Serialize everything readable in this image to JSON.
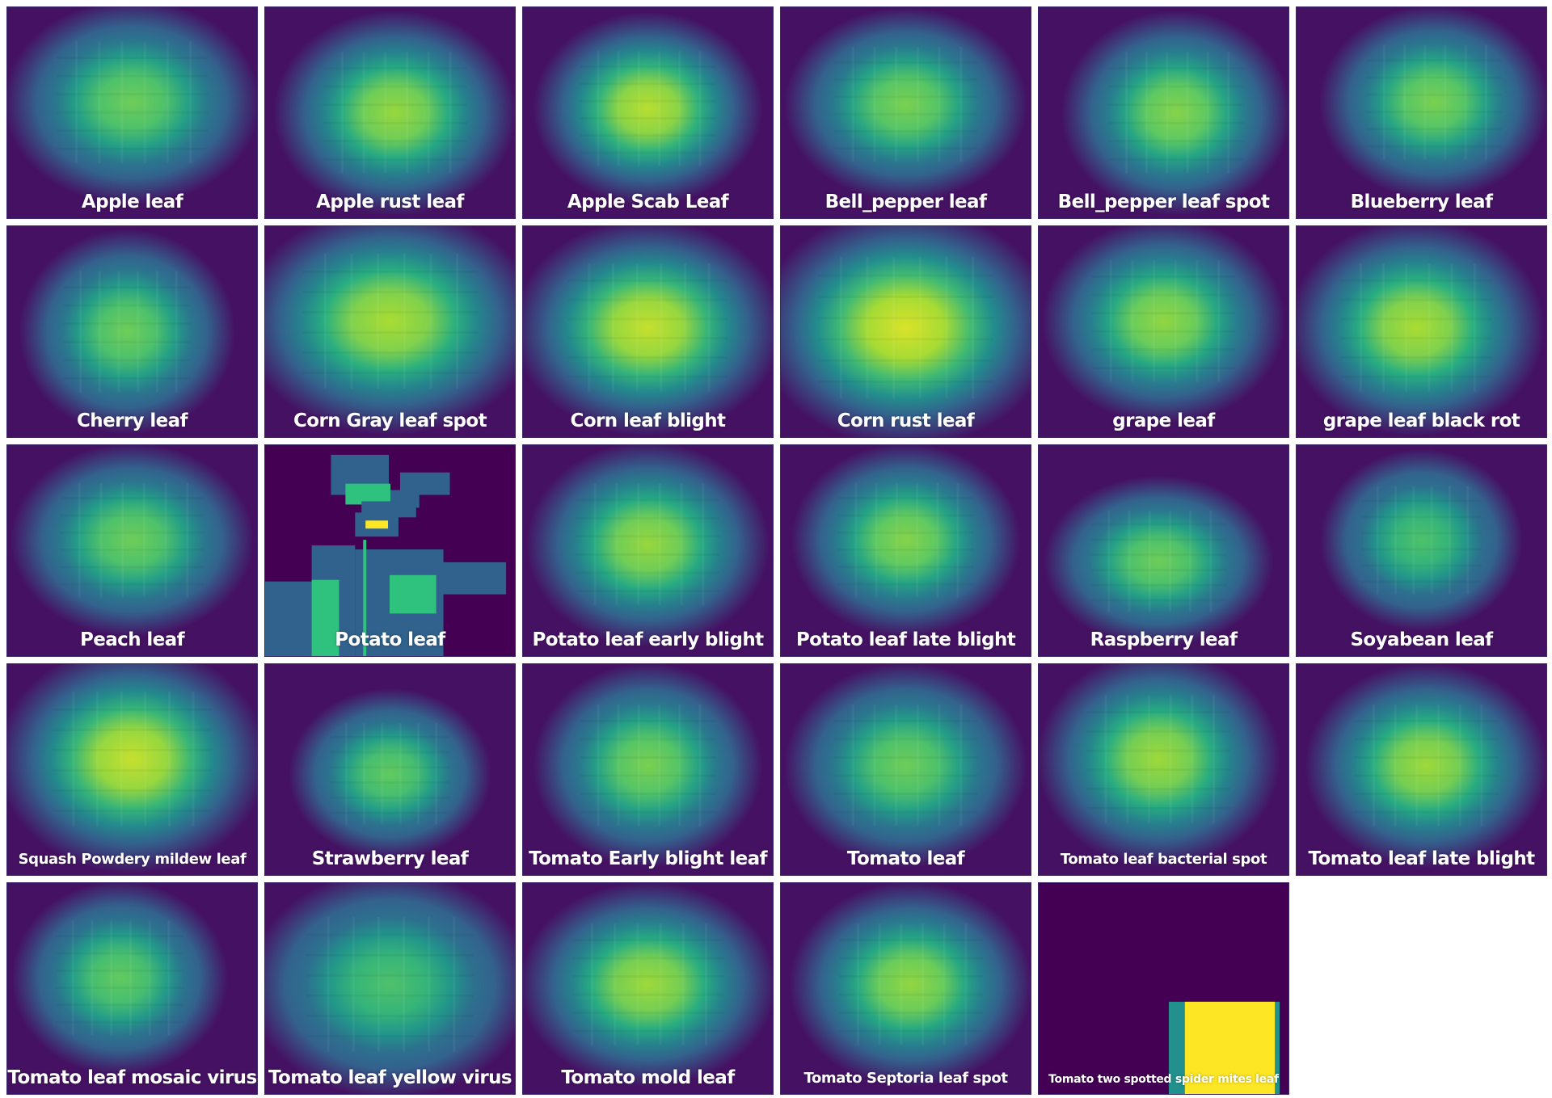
{
  "chart_data": {
    "type": "heatmap",
    "colormap": "viridis",
    "panels": [
      {
        "label": "Apple leaf",
        "style": "blur",
        "cx": 0.5,
        "cy": 0.45,
        "rx": 0.38,
        "ry": 0.36,
        "peak": 0.78
      },
      {
        "label": "Apple rust leaf",
        "style": "blur",
        "cx": 0.52,
        "cy": 0.5,
        "rx": 0.36,
        "ry": 0.36,
        "peak": 0.85
      },
      {
        "label": "Apple Scab Leaf",
        "style": "blur",
        "cx": 0.5,
        "cy": 0.48,
        "rx": 0.34,
        "ry": 0.34,
        "peak": 0.9
      },
      {
        "label": "Bell_pepper leaf",
        "style": "blur",
        "cx": 0.5,
        "cy": 0.46,
        "rx": 0.36,
        "ry": 0.34,
        "peak": 0.8
      },
      {
        "label": "Bell_pepper leaf spot",
        "style": "blur",
        "cx": 0.55,
        "cy": 0.5,
        "rx": 0.34,
        "ry": 0.36,
        "peak": 0.82
      },
      {
        "label": "Blueberry leaf",
        "style": "blur",
        "cx": 0.55,
        "cy": 0.45,
        "rx": 0.34,
        "ry": 0.34,
        "peak": 0.8
      },
      {
        "label": "Cherry leaf",
        "style": "blur",
        "cx": 0.48,
        "cy": 0.5,
        "rx": 0.32,
        "ry": 0.36,
        "peak": 0.78
      },
      {
        "label": "Corn Gray leaf spot",
        "style": "blur",
        "cx": 0.5,
        "cy": 0.45,
        "rx": 0.44,
        "ry": 0.4,
        "peak": 0.88
      },
      {
        "label": "Corn leaf blight",
        "style": "blur",
        "cx": 0.5,
        "cy": 0.48,
        "rx": 0.4,
        "ry": 0.38,
        "peak": 0.92
      },
      {
        "label": "Corn rust leaf",
        "style": "blur",
        "cx": 0.5,
        "cy": 0.48,
        "rx": 0.44,
        "ry": 0.42,
        "peak": 0.95
      },
      {
        "label": "grape leaf",
        "style": "blur",
        "cx": 0.5,
        "cy": 0.45,
        "rx": 0.36,
        "ry": 0.36,
        "peak": 0.84
      },
      {
        "label": "grape leaf black rot",
        "style": "blur",
        "cx": 0.48,
        "cy": 0.48,
        "rx": 0.38,
        "ry": 0.38,
        "peak": 0.88
      },
      {
        "label": "Peach leaf",
        "style": "blur",
        "cx": 0.5,
        "cy": 0.45,
        "rx": 0.36,
        "ry": 0.34,
        "peak": 0.78
      },
      {
        "label": "Potato leaf",
        "style": "blocks"
      },
      {
        "label": "Potato leaf early blight",
        "style": "blur",
        "cx": 0.5,
        "cy": 0.47,
        "rx": 0.36,
        "ry": 0.36,
        "peak": 0.85
      },
      {
        "label": "Potato leaf late blight",
        "style": "blur",
        "cx": 0.5,
        "cy": 0.45,
        "rx": 0.34,
        "ry": 0.34,
        "peak": 0.82
      },
      {
        "label": "Raspberry leaf",
        "style": "blur",
        "cx": 0.48,
        "cy": 0.55,
        "rx": 0.34,
        "ry": 0.3,
        "peak": 0.78
      },
      {
        "label": "Soyabean leaf",
        "style": "blur",
        "cx": 0.5,
        "cy": 0.45,
        "rx": 0.3,
        "ry": 0.32,
        "peak": 0.72
      },
      {
        "label": "Squash Powdery mildew leaf",
        "style": "blur",
        "cx": 0.5,
        "cy": 0.45,
        "rx": 0.4,
        "ry": 0.4,
        "peak": 0.92
      },
      {
        "label": "Strawberry leaf",
        "style": "blur",
        "cx": 0.5,
        "cy": 0.52,
        "rx": 0.3,
        "ry": 0.3,
        "peak": 0.76
      },
      {
        "label": "Tomato Early blight leaf",
        "style": "blur",
        "cx": 0.5,
        "cy": 0.48,
        "rx": 0.34,
        "ry": 0.36,
        "peak": 0.8
      },
      {
        "label": "Tomato leaf",
        "style": "blur",
        "cx": 0.5,
        "cy": 0.48,
        "rx": 0.36,
        "ry": 0.36,
        "peak": 0.78
      },
      {
        "label": "Tomato leaf bacterial spot",
        "style": "blur",
        "cx": 0.48,
        "cy": 0.45,
        "rx": 0.36,
        "ry": 0.38,
        "peak": 0.86
      },
      {
        "label": "Tomato leaf late blight",
        "style": "blur",
        "cx": 0.52,
        "cy": 0.48,
        "rx": 0.36,
        "ry": 0.36,
        "peak": 0.86
      },
      {
        "label": "Tomato leaf mosaic virus",
        "style": "blur",
        "cx": 0.45,
        "cy": 0.45,
        "rx": 0.32,
        "ry": 0.34,
        "peak": 0.76
      },
      {
        "label": "Tomato leaf yellow virus",
        "style": "blur",
        "cx": 0.5,
        "cy": 0.48,
        "rx": 0.42,
        "ry": 0.4,
        "peak": 0.72
      },
      {
        "label": "Tomato mold leaf",
        "style": "blur",
        "cx": 0.5,
        "cy": 0.48,
        "rx": 0.38,
        "ry": 0.36,
        "peak": 0.86
      },
      {
        "label": "Tomato Septoria leaf spot",
        "style": "blur",
        "cx": 0.52,
        "cy": 0.48,
        "rx": 0.36,
        "ry": 0.36,
        "peak": 0.84
      },
      {
        "label": "Tomato two spotted spider mites leaf",
        "style": "patch"
      }
    ]
  }
}
